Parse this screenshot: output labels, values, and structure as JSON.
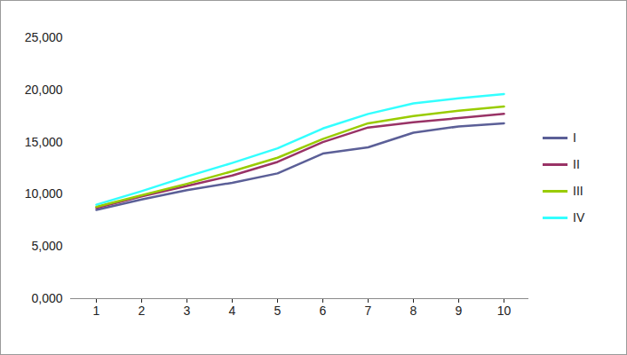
{
  "chart_data": {
    "type": "line",
    "categories": [
      1,
      2,
      3,
      4,
      5,
      6,
      7,
      8,
      9,
      10
    ],
    "series": [
      {
        "name": "I",
        "color": "#5b5f97",
        "values": [
          8.5,
          9.5,
          10.4,
          11.1,
          12.0,
          13.9,
          14.5,
          15.9,
          16.5,
          16.8
        ]
      },
      {
        "name": "II",
        "color": "#993366",
        "values": [
          8.7,
          9.8,
          10.8,
          11.8,
          13.1,
          15.0,
          16.4,
          16.9,
          17.3,
          17.7
        ]
      },
      {
        "name": "III",
        "color": "#99cc00",
        "values": [
          8.8,
          9.9,
          11.0,
          12.2,
          13.5,
          15.3,
          16.8,
          17.5,
          18.0,
          18.4
        ]
      },
      {
        "name": "IV",
        "color": "#33ffff",
        "values": [
          9.0,
          10.3,
          11.7,
          13.0,
          14.4,
          16.3,
          17.7,
          18.7,
          19.2,
          19.6
        ]
      }
    ],
    "ylim": [
      0,
      25
    ],
    "yticks": [
      {
        "value": 0,
        "label": "0,000"
      },
      {
        "value": 5,
        "label": "5,000"
      },
      {
        "value": 10,
        "label": "10,000"
      },
      {
        "value": 15,
        "label": "15,000"
      },
      {
        "value": 20,
        "label": "20,000"
      },
      {
        "value": 25,
        "label": "25,000"
      }
    ],
    "grid": false,
    "legend": "right"
  }
}
